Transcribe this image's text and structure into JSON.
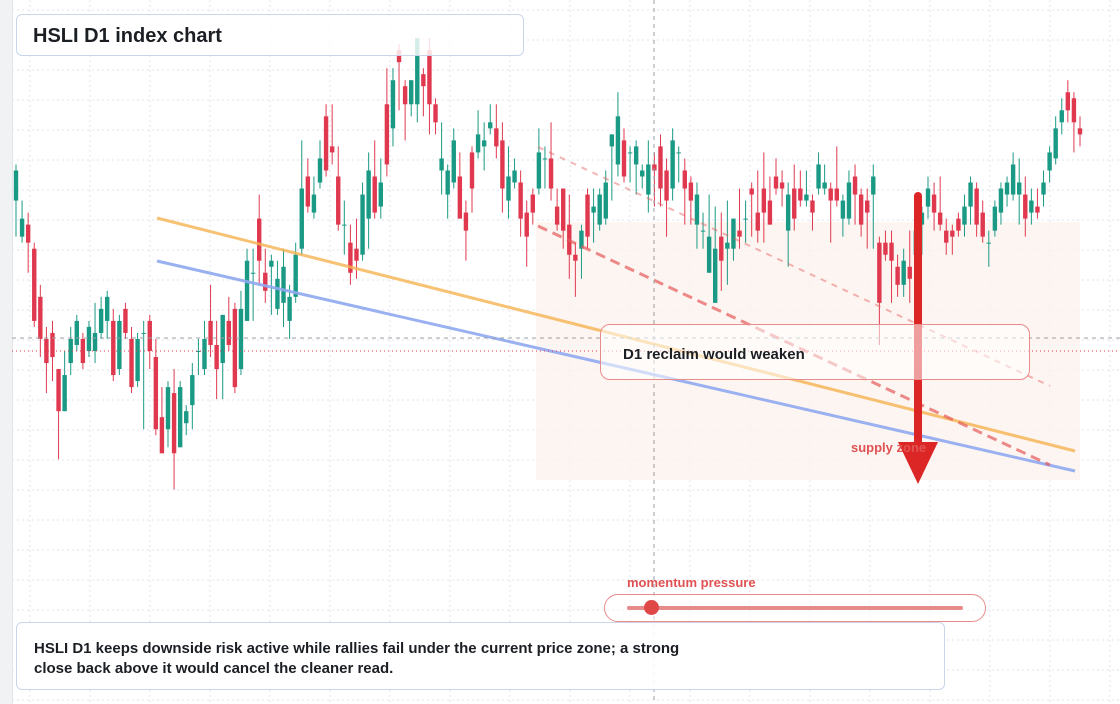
{
  "header": {
    "title": "HSLI D1 index chart"
  },
  "callout": {
    "text": "D1 reclaim would weaken"
  },
  "labels": {
    "supply": "supply zone",
    "momentum": "momentum pressure"
  },
  "summary": {
    "text": "HSLI D1 keeps downside risk active while rallies fail under the current price zone; a strong close back above it would cancel the cleaner read."
  },
  "colors": {
    "up": "#1a9a84",
    "down": "#e0394f",
    "orange_line": "#f5b350",
    "blue_line": "#8fa9ef",
    "red_dashed": "#e45a5a",
    "arrow": "#dc2626",
    "grid": "#dfe3ea",
    "zone": "#fdf3ee"
  },
  "chart_data": {
    "type": "candlestick",
    "y_domain": [
      0,
      100
    ],
    "x_domain": [
      0,
      176
    ],
    "candles": [
      [
        0,
        78,
        83,
        84,
        72
      ],
      [
        1,
        72,
        75,
        78,
        71
      ],
      [
        2,
        74,
        71,
        76,
        66
      ],
      [
        3,
        70,
        58,
        71,
        57
      ],
      [
        4,
        62,
        55,
        64,
        52
      ],
      [
        5,
        55,
        51,
        57,
        46
      ],
      [
        6,
        56,
        52,
        58,
        48
      ],
      [
        7,
        50,
        43,
        50,
        35
      ],
      [
        8,
        43,
        49,
        53,
        43
      ],
      [
        9,
        51,
        55,
        57,
        49
      ],
      [
        10,
        54,
        58,
        59,
        53
      ],
      [
        11,
        55,
        51,
        56,
        50
      ],
      [
        12,
        53,
        57,
        58,
        52
      ],
      [
        13,
        53,
        56,
        61,
        51
      ],
      [
        14,
        56,
        60,
        62,
        55
      ],
      [
        15,
        58,
        62,
        63,
        55
      ],
      [
        16,
        58,
        49,
        60,
        48
      ],
      [
        17,
        50,
        58,
        59,
        49
      ],
      [
        18,
        60,
        56,
        61,
        55
      ],
      [
        19,
        55,
        47,
        57,
        46
      ],
      [
        20,
        48,
        55,
        56,
        47
      ],
      [
        21,
        56,
        56,
        58,
        40
      ],
      [
        22,
        58,
        53,
        59,
        50
      ],
      [
        23,
        52,
        40,
        55,
        39
      ],
      [
        24,
        42,
        36,
        47,
        36
      ],
      [
        25,
        40,
        47,
        48,
        37
      ],
      [
        26,
        46,
        36,
        50,
        30
      ],
      [
        27,
        37,
        47,
        48,
        37
      ],
      [
        28,
        41,
        43,
        44,
        39
      ],
      [
        29,
        44,
        49,
        51,
        40
      ],
      [
        30,
        53,
        53,
        55,
        49
      ],
      [
        31,
        50,
        55,
        58,
        49
      ],
      [
        32,
        58,
        54,
        64,
        52
      ],
      [
        33,
        54,
        50,
        58,
        45
      ],
      [
        34,
        51,
        59,
        59,
        45
      ],
      [
        35,
        58,
        54,
        62,
        53
      ],
      [
        36,
        60,
        47,
        61,
        46
      ],
      [
        37,
        50,
        60,
        63,
        49
      ],
      [
        38,
        58,
        68,
        70,
        58
      ],
      [
        39,
        66,
        66,
        70,
        58
      ],
      [
        40,
        75,
        68,
        79,
        64
      ],
      [
        41,
        66,
        63,
        70,
        61
      ],
      [
        42,
        67,
        68,
        69,
        59
      ],
      [
        43,
        60,
        65,
        68,
        59
      ],
      [
        44,
        61,
        67,
        70,
        57
      ],
      [
        45,
        58,
        62,
        64,
        55
      ],
      [
        46,
        62,
        69,
        71,
        61
      ],
      [
        47,
        70,
        80,
        88,
        69
      ],
      [
        48,
        82,
        77,
        85,
        76
      ],
      [
        49,
        76,
        79,
        82,
        75
      ],
      [
        50,
        81,
        85,
        88,
        80
      ],
      [
        51,
        92,
        83,
        94,
        82
      ],
      [
        52,
        87,
        86,
        94,
        84
      ],
      [
        53,
        82,
        74,
        87,
        73
      ],
      [
        54,
        74,
        74,
        78,
        69
      ],
      [
        55,
        71,
        66,
        74,
        64
      ],
      [
        56,
        70,
        68,
        75,
        65
      ],
      [
        57,
        69,
        79,
        81,
        68
      ],
      [
        58,
        75,
        83,
        86,
        70
      ],
      [
        59,
        82,
        76,
        88,
        75
      ],
      [
        60,
        77,
        81,
        85,
        75
      ],
      [
        61,
        94,
        84,
        100,
        82
      ],
      [
        62,
        90,
        98,
        100,
        87
      ],
      [
        63,
        103,
        101,
        104,
        93
      ],
      [
        64,
        97,
        94,
        98,
        88
      ],
      [
        65,
        94,
        98,
        98,
        92
      ],
      [
        66,
        94,
        105,
        105,
        91
      ],
      [
        67,
        99,
        97,
        100,
        92
      ],
      [
        68,
        103,
        94,
        105,
        89
      ],
      [
        69,
        94,
        91,
        95,
        89
      ],
      [
        70,
        83,
        85,
        91,
        79
      ],
      [
        71,
        79,
        83,
        84,
        75
      ],
      [
        72,
        81,
        88,
        90,
        80
      ],
      [
        73,
        82,
        75,
        86,
        75
      ],
      [
        74,
        76,
        73,
        78,
        68
      ],
      [
        75,
        86,
        80,
        87,
        76
      ],
      [
        76,
        86,
        89,
        93,
        85
      ],
      [
        77,
        87,
        88,
        91,
        83
      ],
      [
        78,
        90,
        91,
        94,
        89
      ],
      [
        79,
        90,
        87,
        94,
        85
      ],
      [
        80,
        88,
        80,
        91,
        76
      ],
      [
        81,
        78,
        82,
        87,
        75
      ],
      [
        82,
        81,
        83,
        85,
        80
      ],
      [
        83,
        81,
        75,
        83,
        72
      ],
      [
        84,
        76,
        72,
        78,
        67
      ],
      [
        85,
        79,
        76,
        80,
        74
      ],
      [
        86,
        80,
        86,
        90,
        79
      ],
      [
        87,
        85,
        85,
        87,
        80
      ],
      [
        88,
        85,
        80,
        91,
        78
      ],
      [
        89,
        77,
        74,
        80,
        73
      ],
      [
        90,
        80,
        73,
        80,
        70
      ],
      [
        91,
        74,
        69,
        79,
        65
      ],
      [
        92,
        69,
        68,
        71,
        62
      ],
      [
        93,
        70,
        73,
        74,
        65
      ],
      [
        94,
        79,
        72,
        80,
        70
      ],
      [
        95,
        76,
        77,
        80,
        71
      ],
      [
        96,
        74,
        79,
        80,
        73
      ],
      [
        97,
        75,
        81,
        83,
        74
      ],
      [
        98,
        87,
        89,
        89,
        78
      ],
      [
        99,
        84,
        92,
        96,
        82
      ],
      [
        100,
        88,
        82,
        90,
        81
      ],
      [
        101,
        86,
        86,
        87,
        81
      ],
      [
        102,
        84,
        87,
        88,
        79
      ],
      [
        103,
        82,
        83,
        84,
        80
      ],
      [
        104,
        79,
        84,
        88,
        76
      ],
      [
        105,
        84,
        83,
        86,
        77
      ],
      [
        106,
        87,
        80,
        89,
        77
      ],
      [
        107,
        83,
        78,
        85,
        72
      ],
      [
        108,
        80,
        88,
        90,
        78
      ],
      [
        109,
        86,
        86,
        87,
        81
      ],
      [
        110,
        83,
        80,
        85,
        74
      ],
      [
        111,
        81,
        78,
        82,
        74
      ],
      [
        112,
        74,
        79,
        81,
        70
      ],
      [
        113,
        73,
        73,
        76,
        70
      ],
      [
        114,
        66,
        72,
        79,
        66
      ],
      [
        115,
        61,
        70,
        77,
        61
      ],
      [
        116,
        72,
        68,
        76,
        63
      ],
      [
        117,
        70,
        71,
        78,
        64
      ],
      [
        118,
        70,
        75,
        75,
        68
      ],
      [
        119,
        73,
        72,
        80,
        70
      ],
      [
        120,
        75,
        75,
        78,
        71
      ],
      [
        121,
        80,
        79,
        81,
        72
      ],
      [
        122,
        76,
        73,
        83,
        71
      ],
      [
        123,
        80,
        76,
        86,
        71
      ],
      [
        124,
        78,
        74,
        82,
        74
      ],
      [
        125,
        82,
        80,
        85,
        79
      ],
      [
        126,
        81,
        80,
        83,
        77
      ],
      [
        127,
        73,
        79,
        81,
        67
      ],
      [
        128,
        80,
        75,
        84,
        73
      ],
      [
        129,
        80,
        78,
        83,
        77
      ],
      [
        130,
        78,
        79,
        83,
        77
      ],
      [
        131,
        78,
        76,
        79,
        73
      ],
      [
        132,
        80,
        84,
        86,
        79
      ],
      [
        133,
        80,
        81,
        84,
        79
      ],
      [
        134,
        80,
        78,
        81,
        71
      ],
      [
        135,
        80,
        78,
        87,
        77
      ],
      [
        136,
        75,
        78,
        79,
        72
      ],
      [
        137,
        75,
        81,
        83,
        74
      ],
      [
        138,
        82,
        79,
        84,
        74
      ],
      [
        139,
        79,
        74,
        80,
        72
      ],
      [
        140,
        78,
        76,
        80,
        70
      ],
      [
        141,
        79,
        82,
        84,
        70
      ],
      [
        142,
        71,
        61,
        72,
        54
      ],
      [
        143,
        71,
        69,
        73,
        68
      ],
      [
        144,
        71,
        68,
        73,
        61
      ],
      [
        145,
        67,
        64,
        69,
        62
      ],
      [
        146,
        64,
        68,
        70,
        62
      ],
      [
        147,
        67,
        65,
        73,
        61
      ],
      [
        148,
        69,
        73,
        74,
        62
      ],
      [
        149,
        74,
        76,
        77,
        69
      ],
      [
        150,
        77,
        80,
        82,
        75
      ],
      [
        151,
        79,
        76,
        81,
        73
      ],
      [
        152,
        76,
        74,
        82,
        73
      ],
      [
        153,
        73,
        71,
        75,
        69
      ],
      [
        154,
        73,
        72,
        74,
        69
      ],
      [
        155,
        75,
        73,
        76,
        72
      ],
      [
        156,
        74,
        77,
        79,
        72
      ],
      [
        157,
        77,
        81,
        82,
        74
      ],
      [
        158,
        80,
        74,
        81,
        72
      ],
      [
        159,
        76,
        72,
        78,
        71
      ],
      [
        160,
        71,
        71,
        73,
        67
      ],
      [
        161,
        73,
        77,
        78,
        72
      ],
      [
        162,
        76,
        80,
        81,
        74
      ],
      [
        163,
        79,
        81,
        82,
        77
      ],
      [
        164,
        79,
        84,
        86,
        78
      ],
      [
        165,
        79,
        81,
        85,
        74
      ],
      [
        166,
        79,
        75,
        82,
        72
      ],
      [
        167,
        76,
        78,
        80,
        74
      ],
      [
        168,
        77,
        76,
        80,
        75
      ],
      [
        169,
        79,
        81,
        83,
        77
      ],
      [
        170,
        83,
        86,
        87,
        81
      ],
      [
        171,
        85,
        90,
        92,
        84
      ],
      [
        172,
        91,
        93,
        95,
        89
      ],
      [
        173,
        96,
        93,
        98,
        91
      ],
      [
        174,
        95,
        91,
        96,
        86
      ],
      [
        175,
        90,
        89,
        92,
        87
      ]
    ]
  }
}
